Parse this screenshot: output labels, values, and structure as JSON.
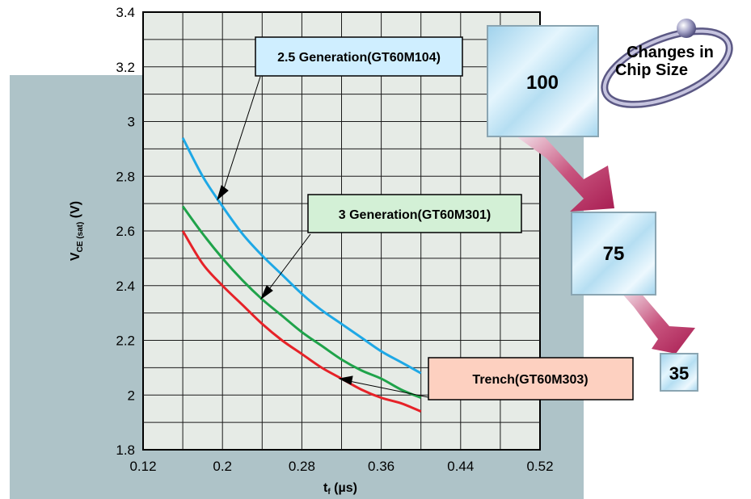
{
  "colors": {
    "backdrop": "#aec3c8",
    "plot_bg": "#e6ebe6",
    "grid": "#1a1a1a",
    "series_25": "#1ea8e6",
    "series_3": "#1fa34a",
    "series_trench": "#e62228",
    "box_25": "#cfeeff",
    "box_3": "#d3f0d6",
    "box_trench": "#fdd0c0",
    "arrow": "#b8245a"
  },
  "chart_data": {
    "type": "line",
    "xlabel_main": "t",
    "xlabel_sub": "f",
    "xlabel_unit": "(µs)",
    "ylabel_main": "V",
    "ylabel_sub": "CE (sat)",
    "ylabel_unit": "(V)",
    "xlim": [
      0.12,
      0.52
    ],
    "ylim": [
      1.8,
      3.4
    ],
    "x_ticks": [
      0.12,
      0.2,
      0.28,
      0.36,
      0.44,
      0.52
    ],
    "x_tick_labels": [
      "0.12",
      "0.2",
      "0.28",
      "0.36",
      "0.44",
      "0.52"
    ],
    "y_ticks": [
      1.8,
      2.0,
      2.2,
      2.4,
      2.6,
      2.8,
      3.0,
      3.2,
      3.4
    ],
    "y_tick_labels": [
      "1.8",
      "2",
      "2.2",
      "2.4",
      "2.6",
      "2.8",
      "3",
      "3.2",
      "3.4"
    ],
    "x_grid_step": 0.04,
    "y_grid_step": 0.1,
    "grid": true,
    "series": [
      {
        "name": "2.5 Generation(GT60M104)",
        "color_key": "series_25",
        "x": [
          0.16,
          0.18,
          0.2,
          0.22,
          0.24,
          0.26,
          0.28,
          0.3,
          0.32,
          0.34,
          0.36,
          0.38,
          0.4
        ],
        "y": [
          2.94,
          2.8,
          2.69,
          2.59,
          2.51,
          2.44,
          2.37,
          2.31,
          2.26,
          2.21,
          2.16,
          2.12,
          2.08
        ]
      },
      {
        "name": "3 Generation(GT60M301)",
        "color_key": "series_3",
        "x": [
          0.16,
          0.18,
          0.2,
          0.22,
          0.24,
          0.26,
          0.28,
          0.3,
          0.32,
          0.34,
          0.36,
          0.38,
          0.4
        ],
        "y": [
          2.69,
          2.59,
          2.5,
          2.42,
          2.35,
          2.29,
          2.23,
          2.18,
          2.13,
          2.09,
          2.06,
          2.02,
          1.99
        ]
      },
      {
        "name": "Trench(GT60M303)",
        "color_key": "series_trench",
        "x": [
          0.16,
          0.18,
          0.2,
          0.22,
          0.24,
          0.26,
          0.28,
          0.3,
          0.32,
          0.34,
          0.36,
          0.38,
          0.4
        ],
        "y": [
          2.6,
          2.48,
          2.4,
          2.33,
          2.26,
          2.2,
          2.15,
          2.1,
          2.06,
          2.02,
          1.99,
          1.97,
          1.94
        ]
      }
    ],
    "annotations": [
      {
        "label": "2.5 Generation(GT60M104)",
        "color_key": "box_25",
        "target_x": 0.2,
        "target_y": 2.69
      },
      {
        "label": "3 Generation(GT60M301)",
        "color_key": "box_3",
        "target_x": 0.24,
        "target_y": 2.35
      },
      {
        "label": "Trench(GT60M303)",
        "color_key": "box_trench",
        "target_x": 0.3,
        "target_y": 2.05
      }
    ]
  },
  "chip_panel": {
    "title_line1": "Changes in",
    "title_line2": "Chip Size",
    "chips": [
      "100",
      "75",
      "35"
    ]
  }
}
